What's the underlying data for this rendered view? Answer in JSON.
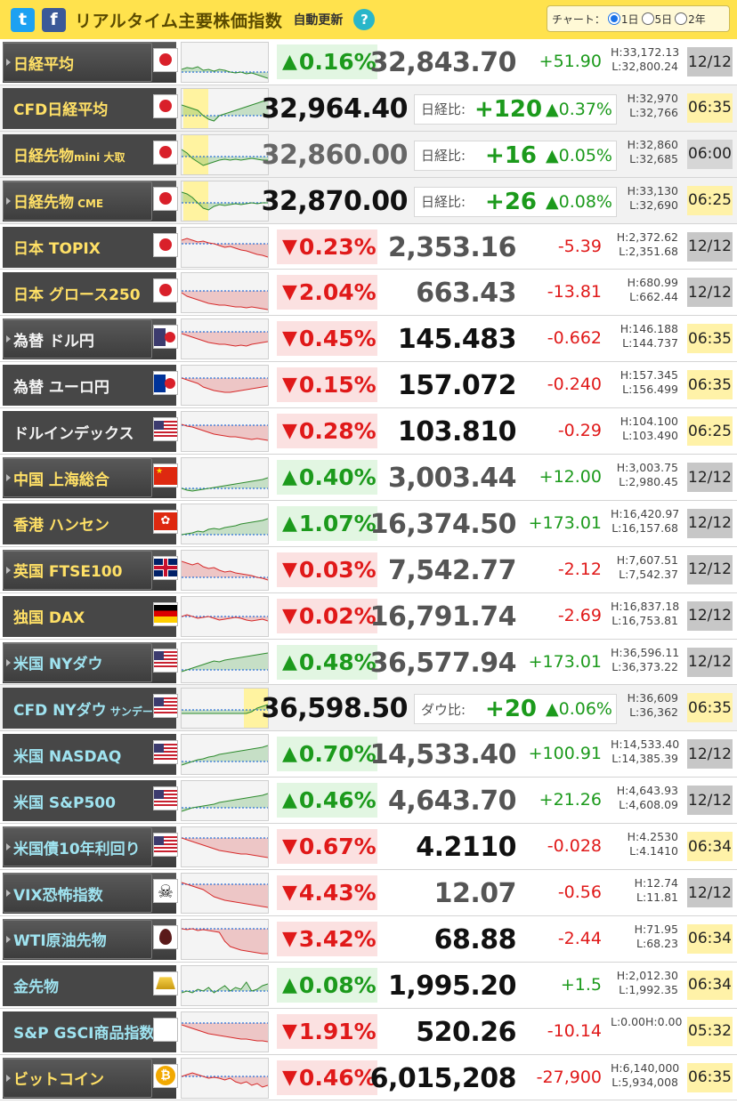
{
  "header": {
    "title": "リアルタイム主要株価指数",
    "auto_update": "自動更新",
    "help": "?",
    "chart_label": "チャート：",
    "options": [
      "1日",
      "5日",
      "2年"
    ],
    "selected": "1日",
    "accent": "#ffe24d"
  },
  "colors": {
    "up": "#1c9a1c",
    "down": "#e01919",
    "name_gold": "#ffe066",
    "name_cyan": "#9fe3f0"
  },
  "rows": [
    {
      "name": "日経平均",
      "btn": true,
      "color": "gold",
      "icon": "jp-flag-icon",
      "flag": "jp",
      "dir": "up",
      "pct": "0.16%",
      "price": "32,843.70",
      "change": "+51.90",
      "high": "H:33,172.13",
      "low": "L:32,800.24",
      "time": "12/12",
      "tstyle": "closed",
      "spark": [
        30,
        28,
        29,
        27,
        31,
        30,
        32,
        30,
        31,
        33,
        34,
        33,
        35,
        34,
        36,
        38,
        40
      ],
      "base": 33,
      "zone": null
    },
    {
      "name": "CFD日経平均",
      "cfd": true,
      "color": "gold",
      "icon": "jp-flag-icon",
      "flag": "jp",
      "price": "32,964.40",
      "diff_label": "日経比:",
      "diff": "+120",
      "diff_pct": "▲0.37%",
      "high": "H:32,970",
      "low": "L:32,766",
      "time": "06:35",
      "tstyle": "live",
      "spark": [
        18,
        20,
        22,
        24,
        30,
        34,
        36,
        30,
        28,
        26,
        24,
        22,
        20,
        18,
        16,
        14,
        12
      ],
      "base": 30,
      "zone": "left"
    },
    {
      "name": "日経先物",
      "sub": "mini 大取",
      "cfd": true,
      "muted": true,
      "color": "gold",
      "icon": "jp-flag-icon",
      "flag": "jp",
      "price": "32,860.00",
      "diff_label": "日経比:",
      "diff": "+16",
      "diff_pct": "▲0.05%",
      "high": "H:32,860",
      "low": "L:32,685",
      "time": "06:00",
      "tstyle": "sunday",
      "spark": [
        16,
        20,
        26,
        30,
        34,
        32,
        30,
        28,
        27,
        28,
        27,
        28,
        27,
        26,
        27,
        28,
        28
      ],
      "base": 24,
      "zone": "left"
    },
    {
      "name": "日経先物",
      "sub": " CME",
      "btn": true,
      "cfd": true,
      "color": "gold",
      "icon": "jp-flag-icon",
      "flag": "jp",
      "price": "32,870.00",
      "diff_label": "日経比:",
      "diff": "+26",
      "diff_pct": "▲0.08%",
      "high": "H:33,130",
      "low": "L:32,690",
      "time": "06:25",
      "tstyle": "live",
      "spark": [
        12,
        14,
        18,
        24,
        30,
        32,
        28,
        26,
        27,
        26,
        25,
        26,
        25,
        24,
        25,
        24,
        24
      ],
      "base": 24,
      "zone": "left"
    },
    {
      "name": "日本 TOPIX",
      "color": "gold",
      "icon": "jp-flag-icon",
      "flag": "jp",
      "dir": "down",
      "pct": "0.23%",
      "price": "2,353.16",
      "change": "-5.39",
      "high": "H:2,372.62",
      "low": "L:2,351.68",
      "time": "12/12",
      "tstyle": "closed",
      "spark": [
        14,
        12,
        14,
        16,
        15,
        17,
        18,
        20,
        22,
        21,
        23,
        25,
        26,
        28,
        30,
        31,
        33
      ],
      "base": 18,
      "zone": null
    },
    {
      "name": "日本 グロース250",
      "color": "gold",
      "icon": "jp-flag-icon",
      "flag": "jp",
      "dir": "down",
      "pct": "2.04%",
      "price": "663.43",
      "change": "-13.81",
      "high": "H:680.99",
      "low": "L:662.44",
      "time": "12/12",
      "tstyle": "closed",
      "spark": [
        22,
        26,
        28,
        30,
        32,
        34,
        35,
        36,
        36,
        37,
        38,
        38,
        39,
        38,
        39,
        40,
        41
      ],
      "base": 20,
      "zone": null
    },
    {
      "name": "為替 ドル円",
      "btn": true,
      "color": "white",
      "icon": "usjp-flag-icon",
      "flag": "usjp",
      "dir": "down",
      "pct": "0.45%",
      "price": "145.483",
      "strong": true,
      "change": "-0.662",
      "high": "H:146.188",
      "low": "L:144.737",
      "time": "06:35",
      "tstyle": "live",
      "spark": [
        16,
        18,
        20,
        22,
        24,
        26,
        27,
        28,
        28,
        29,
        30,
        29,
        30,
        28,
        27,
        26,
        25
      ],
      "base": 14,
      "zone": null
    },
    {
      "name": "為替 ユーロ円",
      "color": "white",
      "icon": "eujp-flag-icon",
      "flag": "eujp",
      "dir": "down",
      "pct": "0.15%",
      "price": "157.072",
      "strong": true,
      "change": "-0.240",
      "high": "H:157.345",
      "low": "L:156.499",
      "time": "06:35",
      "tstyle": "live",
      "spark": [
        14,
        16,
        18,
        20,
        24,
        26,
        28,
        29,
        30,
        30,
        29,
        28,
        27,
        26,
        25,
        24,
        23
      ],
      "base": 14,
      "zone": null
    },
    {
      "name": "ドルインデックス",
      "color": "white",
      "icon": "us-flag-icon",
      "flag": "us",
      "dir": "down",
      "pct": "0.28%",
      "price": "103.810",
      "strong": true,
      "change": "-0.29",
      "high": "H:104.100",
      "low": "L:103.490",
      "time": "06:25",
      "tstyle": "live",
      "spark": [
        14,
        16,
        17,
        19,
        21,
        23,
        25,
        26,
        27,
        28,
        28,
        29,
        30,
        31,
        30,
        31,
        32
      ],
      "base": 15,
      "zone": null
    },
    {
      "name": "中国 上海総合",
      "btn": true,
      "color": "gold",
      "icon": "cn-flag-icon",
      "flag": "cn",
      "dir": "up",
      "pct": "0.40%",
      "price": "3,003.44",
      "change": "+12.00",
      "high": "H:3,003.75",
      "low": "L:2,980.45",
      "time": "12/12",
      "tstyle": "closed",
      "spark": [
        34,
        36,
        37,
        36,
        35,
        34,
        33,
        32,
        31,
        30,
        29,
        28,
        27,
        26,
        25,
        24,
        22
      ],
      "base": 34,
      "zone": null
    },
    {
      "name": "香港 ハンセン",
      "color": "gold",
      "icon": "hk-flag-icon",
      "flag": "hk",
      "dir": "up",
      "pct": "1.07%",
      "price": "16,374.50",
      "change": "+173.01",
      "high": "H:16,420.97",
      "low": "L:16,157.68",
      "time": "12/12",
      "tstyle": "closed",
      "spark": [
        34,
        33,
        32,
        30,
        31,
        28,
        27,
        28,
        26,
        25,
        24,
        22,
        21,
        20,
        19,
        18,
        16
      ],
      "base": 34,
      "zone": null
    },
    {
      "name": "英国 FTSE100",
      "btn": true,
      "color": "gold",
      "icon": "uk-flag-icon",
      "flag": "uk",
      "dir": "down",
      "pct": "0.03%",
      "price": "7,542.77",
      "change": "-2.12",
      "high": "H:7,607.51",
      "low": "L:7,542.37",
      "time": "12/12",
      "tstyle": "closed",
      "spark": [
        12,
        14,
        16,
        14,
        18,
        20,
        19,
        22,
        24,
        23,
        25,
        26,
        27,
        28,
        30,
        31,
        33
      ],
      "base": 30,
      "zone": null
    },
    {
      "name": "独国 DAX",
      "color": "gold",
      "icon": "de-flag-icon",
      "flag": "de",
      "dir": "down",
      "pct": "0.02%",
      "price": "16,791.74",
      "change": "-2.69",
      "high": "H:16,837.18",
      "low": "L:16,753.81",
      "time": "12/12",
      "tstyle": "closed",
      "spark": [
        22,
        20,
        22,
        24,
        23,
        22,
        24,
        26,
        25,
        24,
        23,
        24,
        26,
        27,
        26,
        25,
        27
      ],
      "base": 22,
      "zone": null
    },
    {
      "name": "米国 NYダウ",
      "btn": true,
      "color": "cyan",
      "icon": "us-flag-icon",
      "flag": "us",
      "dir": "up",
      "pct": "0.48%",
      "price": "36,577.94",
      "change": "+173.01",
      "high": "H:36,596.11",
      "low": "L:36,373.22",
      "time": "12/12",
      "tstyle": "closed",
      "spark": [
        32,
        30,
        28,
        26,
        24,
        22,
        20,
        21,
        19,
        18,
        17,
        16,
        15,
        14,
        13,
        12,
        11
      ],
      "base": 30,
      "zone": null
    },
    {
      "name": "CFD NYダウ",
      "sub": " サンデー",
      "cfd": true,
      "color": "cyan",
      "icon": "us-flag-icon",
      "flag": "us",
      "price": "36,598.50",
      "diff_label": "ダウ比:",
      "diff": "+20",
      "diff_pct": "▲0.06%",
      "high": "H:36,609",
      "low": "L:36,362",
      "time": "06:35",
      "tstyle": "live",
      "spark": [
        28,
        28,
        28,
        28,
        28,
        28,
        28,
        28,
        28,
        28,
        28,
        28,
        28,
        26,
        22,
        20,
        18
      ],
      "base": 24,
      "zone": "right"
    },
    {
      "name": "米国 NASDAQ",
      "color": "cyan",
      "icon": "us-flag-icon",
      "flag": "us",
      "dir": "up",
      "pct": "0.70%",
      "price": "14,533.40",
      "change": "+100.91",
      "high": "H:14,533.40",
      "low": "L:14,385.39",
      "time": "12/12",
      "tstyle": "closed",
      "spark": [
        34,
        32,
        30,
        28,
        27,
        25,
        24,
        22,
        21,
        20,
        19,
        18,
        17,
        16,
        15,
        14,
        12
      ],
      "base": 30,
      "zone": null
    },
    {
      "name": "米国 S&P500",
      "color": "cyan",
      "icon": "us-flag-icon",
      "flag": "us",
      "dir": "up",
      "pct": "0.46%",
      "price": "4,643.70",
      "change": "+21.26",
      "high": "H:4,643.93",
      "low": "L:4,608.09",
      "time": "12/12",
      "tstyle": "closed",
      "spark": [
        34,
        32,
        30,
        29,
        28,
        27,
        26,
        24,
        23,
        22,
        21,
        20,
        19,
        18,
        17,
        16,
        14
      ],
      "base": 30,
      "zone": null
    },
    {
      "name": "米国債10年利回り",
      "btn": true,
      "color": "cyan",
      "icon": "us-flag-icon",
      "flag": "us",
      "dir": "down",
      "pct": "0.67%",
      "price": "4.2110",
      "strong": true,
      "change": "-0.028",
      "high": "H:4.2530",
      "low": "L:4.1410",
      "time": "06:34",
      "tstyle": "live",
      "spark": [
        12,
        14,
        16,
        18,
        20,
        22,
        24,
        26,
        27,
        28,
        29,
        30,
        30,
        31,
        32,
        33,
        34
      ],
      "base": 12,
      "zone": null
    },
    {
      "name": "VIX恐怖指数",
      "btn": true,
      "color": "cyan",
      "icon": "reaper-icon",
      "flag": "reaper",
      "dir": "down",
      "pct": "4.43%",
      "price": "12.07",
      "change": "-0.56",
      "high": "H:12.74",
      "low": "L:11.81",
      "time": "12/12",
      "tstyle": "closed",
      "spark": [
        10,
        12,
        14,
        16,
        18,
        22,
        26,
        28,
        30,
        31,
        32,
        33,
        34,
        35,
        36,
        37,
        38
      ],
      "base": 12,
      "zone": null
    },
    {
      "name": "WTI原油先物",
      "btn": true,
      "color": "cyan",
      "icon": "oil-drop-icon",
      "flag": "oil",
      "dir": "down",
      "pct": "3.42%",
      "price": "68.88",
      "strong": true,
      "change": "-2.44",
      "high": "H:71.95",
      "low": "L:68.23",
      "time": "06:34",
      "tstyle": "live",
      "spark": [
        10,
        11,
        10,
        12,
        11,
        12,
        13,
        14,
        24,
        30,
        32,
        34,
        35,
        36,
        37,
        38,
        38
      ],
      "base": 10,
      "zone": null
    },
    {
      "name": "金先物",
      "color": "cyan",
      "icon": "gold-bar-icon",
      "flag": "gold",
      "dir": "up",
      "pct": "0.08%",
      "price": "1,995.20",
      "strong": true,
      "change": "+1.5",
      "high": "H:2,012.30",
      "low": "L:1,992.35",
      "time": "06:34",
      "tstyle": "live",
      "spark": [
        30,
        28,
        30,
        26,
        28,
        24,
        30,
        26,
        22,
        28,
        24,
        26,
        18,
        28,
        26,
        22,
        20
      ],
      "base": 28,
      "zone": null
    },
    {
      "name": "S&P GSCI商品指数",
      "color": "cyan",
      "icon": "blank-icon",
      "flag": "none",
      "dir": "down",
      "pct": "1.91%",
      "price": "520.26",
      "strong": true,
      "change": "-10.14",
      "high": "L:0.00H:0.00",
      "low": "",
      "time": "05:32",
      "tstyle": "live",
      "spark": [
        14,
        16,
        18,
        20,
        22,
        24,
        25,
        26,
        27,
        28,
        29,
        30,
        30,
        31,
        32,
        32,
        33
      ],
      "base": 12,
      "zone": null
    },
    {
      "name": "ビットコイン",
      "btn": true,
      "color": "gold",
      "icon": "bitcoin-icon",
      "flag": "btc",
      "dir": "down",
      "pct": "0.46%",
      "price": "6,015,208",
      "strong": true,
      "change": "-27,900",
      "high": "H:6,140,000",
      "low": "L:5,934,008",
      "time": "06:35",
      "tstyle": "live",
      "spark": [
        20,
        18,
        16,
        18,
        20,
        22,
        21,
        22,
        24,
        22,
        26,
        28,
        26,
        30,
        28,
        32,
        30
      ],
      "base": 20,
      "zone": null
    }
  ]
}
